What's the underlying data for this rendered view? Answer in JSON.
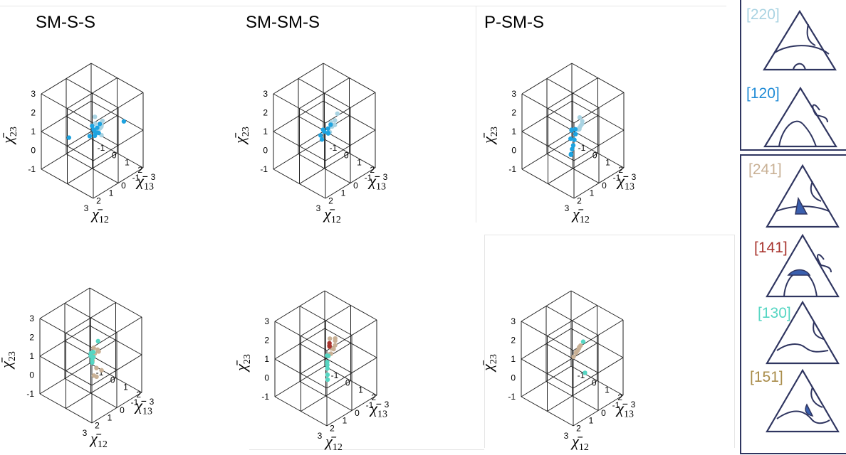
{
  "figure": {
    "panels_top": [
      "SM-S-S",
      "SM-SM-S",
      "P-SM-S"
    ]
  },
  "axes_labels": {
    "x": {
      "sym": "χ̄",
      "sub": "12"
    },
    "y": {
      "sym": "χ̄",
      "sub": "13"
    },
    "z": {
      "sym": "χ̄",
      "sub": "23"
    }
  },
  "legend": {
    "group_top": [
      {
        "label": "[220]",
        "color": "#a9d3e2"
      },
      {
        "label": "[120]",
        "color": "#1f8bd6"
      }
    ],
    "group_bottom": [
      {
        "label": "[241]",
        "color": "#c9b196"
      },
      {
        "label": "[141]",
        "color": "#a8342e"
      },
      {
        "label": "[130]",
        "color": "#56d6c3"
      },
      {
        "label": "[151]",
        "color": "#a98c4a"
      }
    ]
  },
  "colors": {
    "c220": "#a9d3e2",
    "c120": "#1ea3e0",
    "c241": "#c9b196",
    "c141": "#a8342e",
    "c130": "#56d6c3",
    "c151": "#a98c4a",
    "box": "#222222",
    "legend_border": "#2f3560",
    "triangle_stroke": "#2f3560",
    "triangle_fill": "#3a5fae"
  },
  "chart_data": [
    {
      "type": "scatter",
      "title": "SM-S-S",
      "projection": "3d",
      "xlabel": "χ̄12",
      "ylabel": "χ̄13",
      "zlabel": "χ̄23",
      "xlim": [
        -1,
        3
      ],
      "ylim": [
        -1,
        3
      ],
      "zlim": [
        -1,
        3
      ],
      "xticks": [
        "-1",
        "0",
        "1",
        "2",
        "3"
      ],
      "yticks": [
        "-1",
        "0",
        "1",
        "2",
        "3"
      ],
      "zticks": [
        "-1",
        "0",
        "1",
        "2",
        "3"
      ],
      "series": [
        {
          "name": "[220]",
          "color": "#a9d3e2",
          "points": [
            [
              0.9,
              1.6,
              1.4
            ],
            [
              1.1,
              1.8,
              1.6
            ],
            [
              1.3,
              2.0,
              1.8
            ],
            [
              1.5,
              2.1,
              2.0
            ],
            [
              0.8,
              1.4,
              1.2
            ],
            [
              1.0,
              1.7,
              1.5
            ],
            [
              1.2,
              1.9,
              1.2
            ],
            [
              1.4,
              1.6,
              1.3
            ],
            [
              0.7,
              1.5,
              1.6
            ],
            [
              1.6,
              2.0,
              1.7
            ],
            [
              1.1,
              1.3,
              1.9
            ],
            [
              1.3,
              1.5,
              1.7
            ]
          ]
        },
        {
          "name": "[120]",
          "color": "#1ea3e0",
          "points": [
            [
              0.6,
              1.0,
              1.0
            ],
            [
              0.8,
              1.2,
              0.9
            ],
            [
              1.0,
              1.1,
              1.1
            ],
            [
              0.7,
              0.9,
              0.8
            ],
            [
              0.9,
              1.4,
              1.0
            ],
            [
              1.1,
              1.3,
              0.9
            ],
            [
              0.5,
              1.1,
              1.2
            ],
            [
              1.2,
              1.0,
              0.8
            ],
            [
              0.8,
              0.8,
              1.1
            ],
            [
              -0.6,
              1.9,
              1.2
            ],
            [
              1.2,
              -0.6,
              0.1
            ]
          ]
        }
      ]
    },
    {
      "type": "scatter",
      "title": "SM-SM-S",
      "projection": "3d",
      "xlabel": "χ̄12",
      "ylabel": "χ̄13",
      "zlabel": "χ̄23",
      "xlim": [
        -1,
        3
      ],
      "ylim": [
        -1,
        3
      ],
      "zlim": [
        -1,
        3
      ],
      "xticks": [
        "-1",
        "0",
        "1",
        "2",
        "3"
      ],
      "yticks": [
        "-1",
        "0",
        "1",
        "2",
        "3"
      ],
      "zticks": [
        "-1",
        "0",
        "1",
        "2",
        "3"
      ],
      "series": [
        {
          "name": "[220]",
          "color": "#a9d3e2",
          "points": [
            [
              0.9,
              1.6,
              1.5
            ],
            [
              1.1,
              1.9,
              1.7
            ],
            [
              1.3,
              2.1,
              2.1
            ],
            [
              0.8,
              1.4,
              1.3
            ],
            [
              1.2,
              1.7,
              1.8
            ],
            [
              1.4,
              1.8,
              1.4
            ],
            [
              1.0,
              2.0,
              2.3
            ],
            [
              1.2,
              1.5,
              1.2
            ]
          ]
        },
        {
          "name": "[120]",
          "color": "#1ea3e0",
          "points": [
            [
              0.7,
              1.0,
              1.0
            ],
            [
              0.9,
              1.2,
              0.9
            ],
            [
              1.1,
              1.0,
              1.1
            ],
            [
              0.8,
              0.8,
              0.8
            ],
            [
              1.0,
              1.3,
              1.0
            ],
            [
              1.2,
              0.9,
              0.8
            ],
            [
              0.6,
              1.1,
              1.2
            ],
            [
              1.3,
              1.1,
              0.7
            ]
          ]
        }
      ]
    },
    {
      "type": "scatter",
      "title": "P-SM-S",
      "projection": "3d",
      "xlabel": "χ̄12",
      "ylabel": "χ̄13",
      "zlabel": "χ̄23",
      "xlim": [
        -1,
        3
      ],
      "ylim": [
        -1,
        3
      ],
      "zlim": [
        -1,
        3
      ],
      "xticks": [
        "-1",
        "0",
        "1",
        "2",
        "3"
      ],
      "yticks": [
        "-1",
        "0",
        "1",
        "2",
        "3"
      ],
      "zticks": [
        "-1",
        "0",
        "1",
        "2",
        "3"
      ],
      "series": [
        {
          "name": "[220]",
          "color": "#a9d3e2",
          "points": [
            [
              1.0,
              1.6,
              1.5
            ],
            [
              1.2,
              1.9,
              1.8
            ],
            [
              1.4,
              2.1,
              2.1
            ],
            [
              1.1,
              1.5,
              1.3
            ],
            [
              1.3,
              1.8,
              1.6
            ],
            [
              1.5,
              2.0,
              2.3
            ],
            [
              0.9,
              1.4,
              1.2
            ]
          ]
        },
        {
          "name": "[120]",
          "color": "#1ea3e0",
          "points": [
            [
              0.8,
              1.0,
              1.0
            ],
            [
              1.0,
              1.2,
              0.9
            ],
            [
              1.3,
              1.4,
              0.8
            ],
            [
              1.6,
              1.6,
              0.7
            ],
            [
              1.9,
              1.8,
              0.7
            ],
            [
              2.2,
              2.0,
              0.6
            ],
            [
              1.1,
              1.0,
              1.1
            ],
            [
              1.5,
              1.3,
              0.9
            ],
            [
              2.4,
              2.2,
              0.8
            ],
            [
              0.9,
              0.8,
              0.9
            ]
          ]
        }
      ]
    },
    {
      "type": "scatter",
      "projection": "3d",
      "xlabel": "χ̄12",
      "ylabel": "χ̄13",
      "zlabel": "χ̄23",
      "xlim": [
        -1,
        3
      ],
      "ylim": [
        -1,
        3
      ],
      "zlim": [
        -1,
        3
      ],
      "xticks": [
        "-1",
        "0",
        "1",
        "2",
        "3"
      ],
      "yticks": [
        "-1",
        "0",
        "1",
        "2",
        "3"
      ],
      "zticks": [
        "-1",
        "0",
        "1",
        "2",
        "3"
      ],
      "series": [
        {
          "name": "[241]",
          "color": "#c9b196",
          "points": [
            [
              1.2,
              1.8,
              1.6
            ],
            [
              1.5,
              2.0,
              1.9
            ],
            [
              1.8,
              1.9,
              1.4
            ],
            [
              1.9,
              2.3,
              1.2
            ],
            [
              2.0,
              2.2,
              0.8
            ],
            [
              1.4,
              1.6,
              1.8
            ],
            [
              1.6,
              2.4,
              1.0
            ],
            [
              1.1,
              1.4,
              1.3
            ],
            [
              2.1,
              2.5,
              0.9
            ]
          ]
        },
        {
          "name": "[130]",
          "color": "#56d6c3",
          "points": [
            [
              0.8,
              1.0,
              1.1
            ],
            [
              1.0,
              1.2,
              1.0
            ],
            [
              1.2,
              1.3,
              1.0
            ],
            [
              0.9,
              0.9,
              0.9
            ],
            [
              1.1,
              1.1,
              1.2
            ],
            [
              1.3,
              1.4,
              0.9
            ],
            [
              0.0,
              0.6,
              1.2
            ]
          ]
        }
      ]
    },
    {
      "type": "scatter",
      "projection": "3d",
      "xlabel": "χ̄12",
      "ylabel": "χ̄13",
      "zlabel": "χ̄23",
      "xlim": [
        -1,
        3
      ],
      "ylim": [
        -1,
        3
      ],
      "zlim": [
        -1,
        3
      ],
      "xticks": [
        "-1",
        "0",
        "1",
        "2",
        "3"
      ],
      "yticks": [
        "-1",
        "0",
        "1",
        "2",
        "3"
      ],
      "zticks": [
        "-1",
        "0",
        "1",
        "2",
        "3"
      ],
      "series": [
        {
          "name": "[241]",
          "color": "#c9b196",
          "points": [
            [
              1.1,
              1.7,
              1.8
            ],
            [
              1.3,
              2.0,
              2.2
            ],
            [
              1.5,
              2.2,
              2.6
            ],
            [
              1.2,
              1.5,
              1.5
            ],
            [
              1.4,
              1.8,
              2.0
            ],
            [
              1.0,
              1.4,
              1.4
            ],
            [
              1.6,
              2.3,
              2.8
            ],
            [
              1.3,
              1.6,
              2.4
            ]
          ]
        },
        {
          "name": "[141]",
          "color": "#a8342e",
          "points": [
            [
              0.6,
              0.9,
              1.6
            ],
            [
              0.7,
              1.0,
              1.5
            ],
            [
              0.5,
              0.8,
              1.4
            ]
          ]
        },
        {
          "name": "[130]",
          "color": "#56d6c3",
          "points": [
            [
              0.9,
              1.0,
              1.1
            ],
            [
              1.2,
              1.3,
              1.0
            ],
            [
              1.5,
              1.6,
              0.9
            ],
            [
              1.8,
              1.9,
              0.8
            ],
            [
              2.0,
              2.1,
              0.7
            ],
            [
              1.0,
              1.2,
              1.2
            ],
            [
              1.4,
              1.5,
              1.0
            ]
          ]
        }
      ]
    },
    {
      "type": "scatter",
      "projection": "3d",
      "xlabel": "χ̄12",
      "ylabel": "χ̄13",
      "zlabel": "χ̄23",
      "xlim": [
        -1,
        3
      ],
      "ylim": [
        -1,
        3
      ],
      "zlim": [
        -1,
        3
      ],
      "xticks": [
        "-1",
        "0",
        "1",
        "2",
        "3"
      ],
      "yticks": [
        "-1",
        "0",
        "1",
        "2",
        "3"
      ],
      "zticks": [
        "-1",
        "0",
        "1",
        "2",
        "3"
      ],
      "series": [
        {
          "name": "[241]",
          "color": "#c9b196",
          "points": [
            [
              1.0,
              1.3,
              1.4
            ],
            [
              1.3,
              1.7,
              1.8
            ],
            [
              1.6,
              2.1,
              2.2
            ],
            [
              1.9,
              2.4,
              2.5
            ],
            [
              1.2,
              1.5,
              1.6
            ],
            [
              1.7,
              2.0,
              2.0
            ],
            [
              2.0,
              2.6,
              2.7
            ],
            [
              1.1,
              1.2,
              1.2
            ]
          ]
        },
        {
          "name": "[130]",
          "color": "#56d6c3",
          "points": [
            [
              -0.3,
              0.6,
              1.2
            ],
            [
              0.6,
              1.6,
              0.3
            ]
          ]
        }
      ]
    }
  ]
}
